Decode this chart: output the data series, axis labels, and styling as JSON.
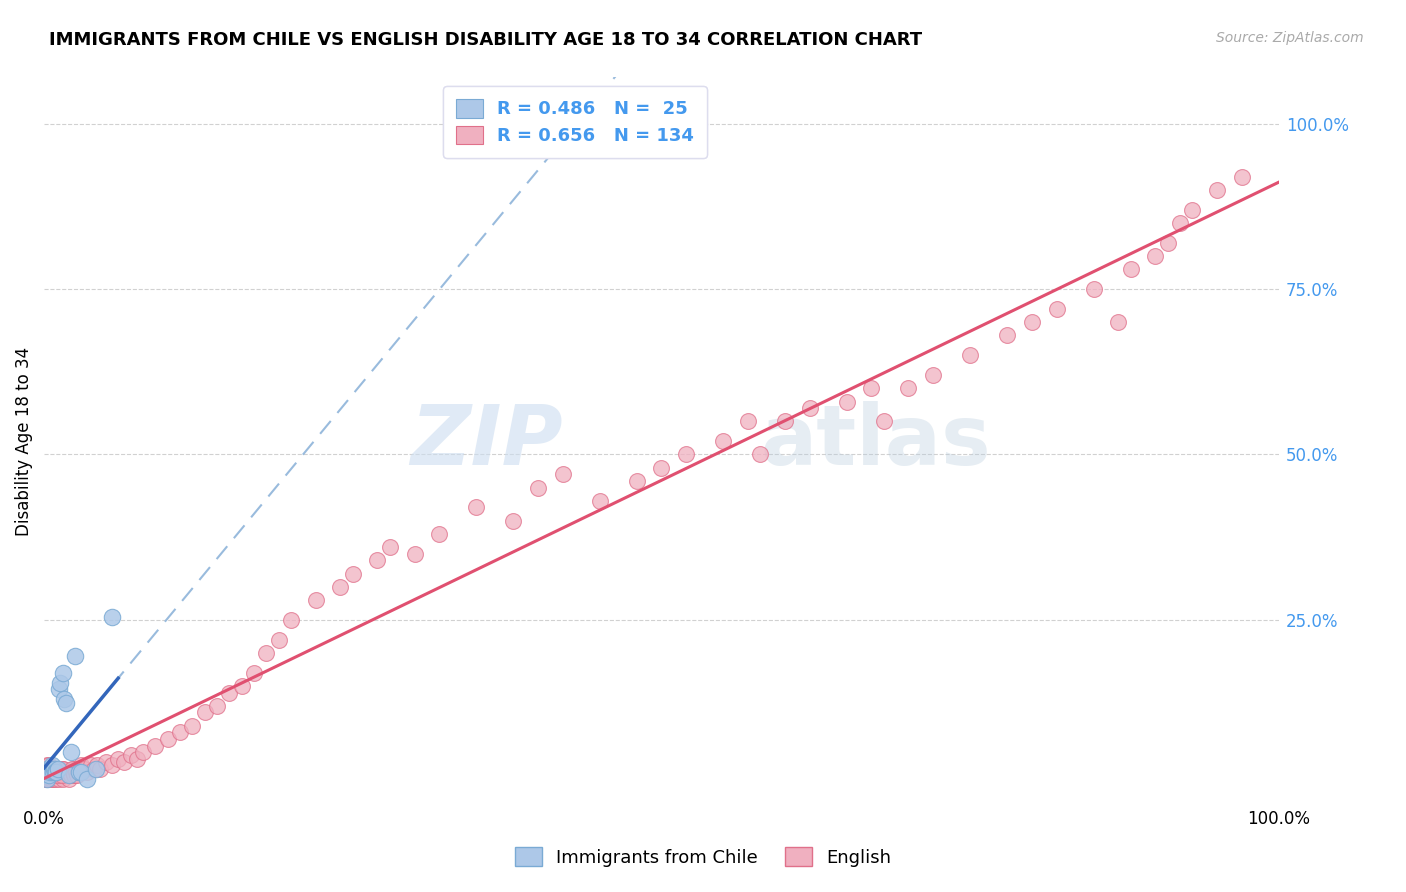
{
  "title": "IMMIGRANTS FROM CHILE VS ENGLISH DISABILITY AGE 18 TO 34 CORRELATION CHART",
  "source": "Source: ZipAtlas.com",
  "ylabel": "Disability Age 18 to 34",
  "legend_bottom": [
    "Immigrants from Chile",
    "English"
  ],
  "blue_R": 0.486,
  "blue_N": 25,
  "pink_R": 0.656,
  "pink_N": 134,
  "blue_fill": "#adc8e8",
  "blue_edge": "#7aaad4",
  "blue_line": "#3366bb",
  "pink_fill": "#f0b0c0",
  "pink_edge": "#e0708a",
  "pink_line": "#e05070",
  "dash_color": "#99bbdd",
  "right_tick_color": "#4499ee",
  "title_fontsize": 13,
  "axis_label_fontsize": 12,
  "legend_fontsize": 13,
  "blue_x": [
    0.15,
    0.2,
    0.25,
    0.3,
    0.4,
    0.5,
    0.6,
    0.7,
    0.8,
    0.9,
    1.0,
    1.1,
    1.2,
    1.3,
    1.5,
    1.6,
    1.8,
    2.0,
    2.2,
    2.5,
    2.8,
    3.0,
    3.5,
    4.2,
    5.5
  ],
  "blue_y": [
    1.5,
    2.5,
    1.0,
    2.0,
    1.5,
    2.0,
    3.0,
    2.0,
    2.5,
    2.0,
    2.0,
    2.5,
    14.5,
    15.5,
    17.0,
    13.0,
    12.5,
    1.5,
    5.0,
    19.5,
    2.0,
    2.0,
    1.0,
    2.5,
    25.5
  ],
  "pink_x": [
    0.05,
    0.1,
    0.1,
    0.15,
    0.15,
    0.2,
    0.2,
    0.2,
    0.25,
    0.25,
    0.3,
    0.3,
    0.35,
    0.4,
    0.4,
    0.4,
    0.45,
    0.5,
    0.5,
    0.5,
    0.55,
    0.6,
    0.6,
    0.65,
    0.7,
    0.7,
    0.8,
    0.8,
    0.9,
    0.9,
    1.0,
    1.0,
    1.1,
    1.2,
    1.2,
    1.3,
    1.4,
    1.5,
    1.5,
    1.6,
    1.7,
    1.8,
    1.9,
    2.0,
    2.1,
    2.2,
    2.3,
    2.4,
    2.5,
    2.6,
    2.8,
    3.0,
    3.2,
    3.5,
    3.8,
    4.0,
    4.3,
    4.5,
    5.0,
    5.5,
    6.0,
    6.5,
    7.0,
    7.5,
    8.0,
    9.0,
    10.0,
    11.0,
    12.0,
    13.0,
    14.0,
    15.0,
    16.0,
    17.0,
    18.0,
    19.0,
    20.0,
    22.0,
    24.0,
    25.0,
    27.0,
    28.0,
    30.0,
    32.0,
    35.0,
    38.0,
    40.0,
    42.0,
    45.0,
    48.0,
    50.0,
    52.0,
    55.0,
    57.0,
    58.0,
    60.0,
    62.0,
    65.0,
    67.0,
    68.0,
    70.0,
    72.0,
    75.0,
    78.0,
    80.0,
    82.0,
    85.0,
    87.0,
    88.0,
    90.0,
    91.0,
    92.0,
    93.0,
    95.0,
    97.0,
    0.35,
    0.45,
    0.55,
    0.65,
    0.75,
    1.05,
    1.15,
    1.25,
    1.35,
    1.45,
    1.55,
    2.05,
    2.15,
    2.25,
    2.35,
    2.45,
    2.55,
    2.65,
    2.75
  ],
  "pink_y": [
    1.5,
    1.0,
    2.0,
    1.5,
    2.5,
    1.0,
    2.0,
    3.0,
    1.5,
    2.5,
    1.0,
    2.0,
    1.5,
    1.0,
    2.0,
    3.0,
    1.5,
    1.0,
    2.0,
    1.5,
    1.0,
    2.0,
    1.5,
    1.0,
    2.0,
    1.5,
    1.0,
    2.0,
    1.5,
    2.5,
    1.0,
    2.0,
    1.5,
    1.0,
    2.5,
    2.0,
    1.5,
    1.0,
    2.5,
    2.0,
    1.5,
    2.0,
    1.5,
    1.0,
    2.0,
    1.5,
    2.5,
    2.0,
    1.5,
    2.5,
    2.0,
    3.0,
    2.5,
    2.0,
    3.0,
    2.5,
    3.0,
    2.5,
    3.5,
    3.0,
    4.0,
    3.5,
    4.5,
    4.0,
    5.0,
    6.0,
    7.0,
    8.0,
    9.0,
    11.0,
    12.0,
    14.0,
    15.0,
    17.0,
    20.0,
    22.0,
    25.0,
    28.0,
    30.0,
    32.0,
    34.0,
    36.0,
    35.0,
    38.0,
    42.0,
    40.0,
    45.0,
    47.0,
    43.0,
    46.0,
    48.0,
    50.0,
    52.0,
    55.0,
    50.0,
    55.0,
    57.0,
    58.0,
    60.0,
    55.0,
    60.0,
    62.0,
    65.0,
    68.0,
    70.0,
    72.0,
    75.0,
    70.0,
    78.0,
    80.0,
    82.0,
    85.0,
    87.0,
    90.0,
    92.0,
    2.0,
    1.5,
    2.0,
    2.5,
    1.5,
    2.0,
    1.5,
    2.0,
    2.5,
    1.5,
    2.5,
    2.0,
    1.5,
    2.5,
    2.0,
    1.5,
    2.0,
    1.5,
    2.0
  ]
}
